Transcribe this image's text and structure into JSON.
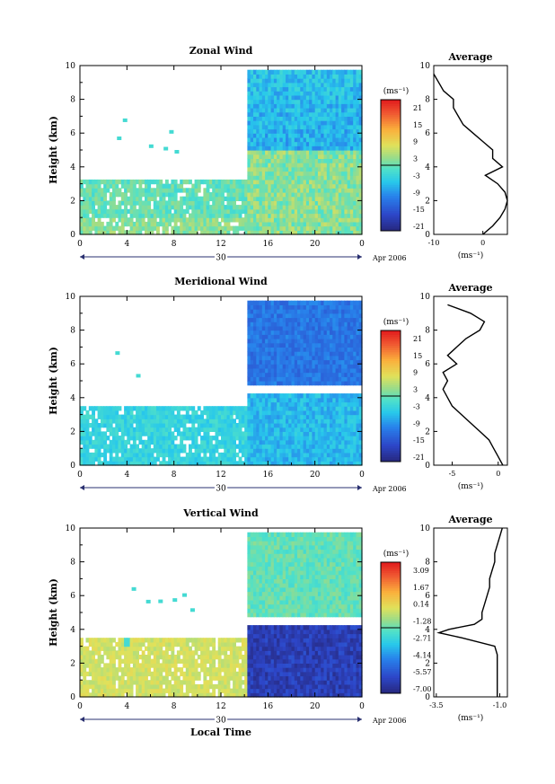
{
  "chart_data": [
    {
      "type": "heatmap",
      "title": "Zonal Wind",
      "ylabel": "Height (km)",
      "xlabel": "",
      "x_ticks": [
        "0",
        "4",
        "8",
        "12",
        "16",
        "20",
        "0"
      ],
      "y_ticks": [
        "0",
        "2",
        "4",
        "6",
        "8",
        "10"
      ],
      "date_label": "30",
      "date_suffix": "Apr 2006",
      "ylim": [
        0,
        10
      ],
      "xlim_hours": [
        0,
        24
      ],
      "colorbar_unit": "(ms⁻¹)",
      "colorbar_ticks": [
        "21",
        "15",
        "9",
        "3",
        "-3",
        "-9",
        "-15",
        "-21"
      ],
      "colorbar_range": [
        -24,
        24
      ],
      "profile": {
        "title": "Average",
        "xlabel": "(ms⁻¹)",
        "x_ticks": [
          "-10",
          "0"
        ],
        "xlim": [
          -10,
          5
        ],
        "y_ticks": [
          "0",
          "2",
          "4",
          "6",
          "8",
          "10"
        ],
        "heights": [
          0,
          0.5,
          1,
          1.5,
          2,
          2.5,
          3,
          3.5,
          4,
          4.5,
          5,
          5.5,
          6,
          6.5,
          7,
          7.5,
          8,
          8.5,
          9,
          9.5
        ],
        "values": [
          0,
          2,
          3.5,
          4.5,
          5,
          4.5,
          3,
          0.5,
          4,
          2,
          2,
          0,
          -2,
          -4,
          -5,
          -6,
          -6,
          -8,
          -9,
          -10
        ]
      }
    },
    {
      "type": "heatmap",
      "title": "Meridional Wind",
      "ylabel": "Height (km)",
      "xlabel": "",
      "x_ticks": [
        "0",
        "4",
        "8",
        "12",
        "16",
        "20",
        "0"
      ],
      "y_ticks": [
        "0",
        "2",
        "4",
        "6",
        "8",
        "10"
      ],
      "date_label": "30",
      "date_suffix": "Apr 2006",
      "ylim": [
        0,
        10
      ],
      "xlim_hours": [
        0,
        24
      ],
      "colorbar_unit": "(ms⁻¹)",
      "colorbar_ticks": [
        "21",
        "15",
        "9",
        "3",
        "-3",
        "-9",
        "-15",
        "-21"
      ],
      "colorbar_range": [
        -24,
        24
      ],
      "profile": {
        "title": "Average",
        "xlabel": "(ms⁻¹)",
        "x_ticks": [
          "-5",
          "0"
        ],
        "xlim": [
          -7,
          1
        ],
        "y_ticks": [
          "0",
          "2",
          "4",
          "6",
          "8",
          "10"
        ],
        "heights": [
          0,
          0.5,
          1,
          1.5,
          2,
          2.5,
          3,
          3.5,
          4,
          4.5,
          5,
          5.5,
          6,
          6.5,
          7,
          7.5,
          8,
          8.5,
          9,
          9.5
        ],
        "values": [
          0.5,
          0,
          -0.5,
          -1,
          -2,
          -3,
          -4,
          -5,
          -5.5,
          -6,
          -5.5,
          -6,
          -4.5,
          -5.5,
          -4.5,
          -3.5,
          -2,
          -1.5,
          -3,
          -5.5
        ]
      }
    },
    {
      "type": "heatmap",
      "title": "Vertical Wind",
      "ylabel": "Height (km)",
      "xlabel": "Local Time",
      "x_ticks": [
        "0",
        "4",
        "8",
        "12",
        "16",
        "20",
        "0"
      ],
      "y_ticks": [
        "0",
        "2",
        "4",
        "6",
        "8",
        "10"
      ],
      "date_label": "30",
      "date_suffix": "Apr 2006",
      "ylim": [
        0,
        10
      ],
      "xlim_hours": [
        0,
        24
      ],
      "colorbar_unit": "(ms⁻¹)",
      "colorbar_ticks": [
        "3.09",
        "1.67",
        "0.14",
        "-1.28",
        "-2.71",
        "-4.14",
        "-5.57",
        "-7.00"
      ],
      "colorbar_range": [
        -8,
        4
      ],
      "profile": {
        "title": "Average",
        "xlabel": "(ms⁻¹)",
        "x_ticks": [
          "-3.5",
          "-1.0"
        ],
        "xlim": [
          -3.6,
          -0.7
        ],
        "y_ticks": [
          "0",
          "2",
          "4",
          "6",
          "8",
          "10"
        ],
        "heights": [
          0,
          0.5,
          1,
          1.5,
          2,
          2.5,
          3,
          3.5,
          3.8,
          4,
          4.3,
          4.6,
          5,
          5.5,
          6,
          6.5,
          7,
          7.5,
          8,
          8.5,
          9,
          9.5,
          10
        ],
        "values": [
          -1.1,
          -1.1,
          -1.1,
          -1.1,
          -1.1,
          -1.1,
          -1.2,
          -2.5,
          -3.4,
          -3.0,
          -2.0,
          -1.7,
          -1.7,
          -1.6,
          -1.5,
          -1.4,
          -1.4,
          -1.3,
          -1.2,
          -1.2,
          -1.1,
          -1.0,
          -0.9
        ]
      }
    }
  ]
}
